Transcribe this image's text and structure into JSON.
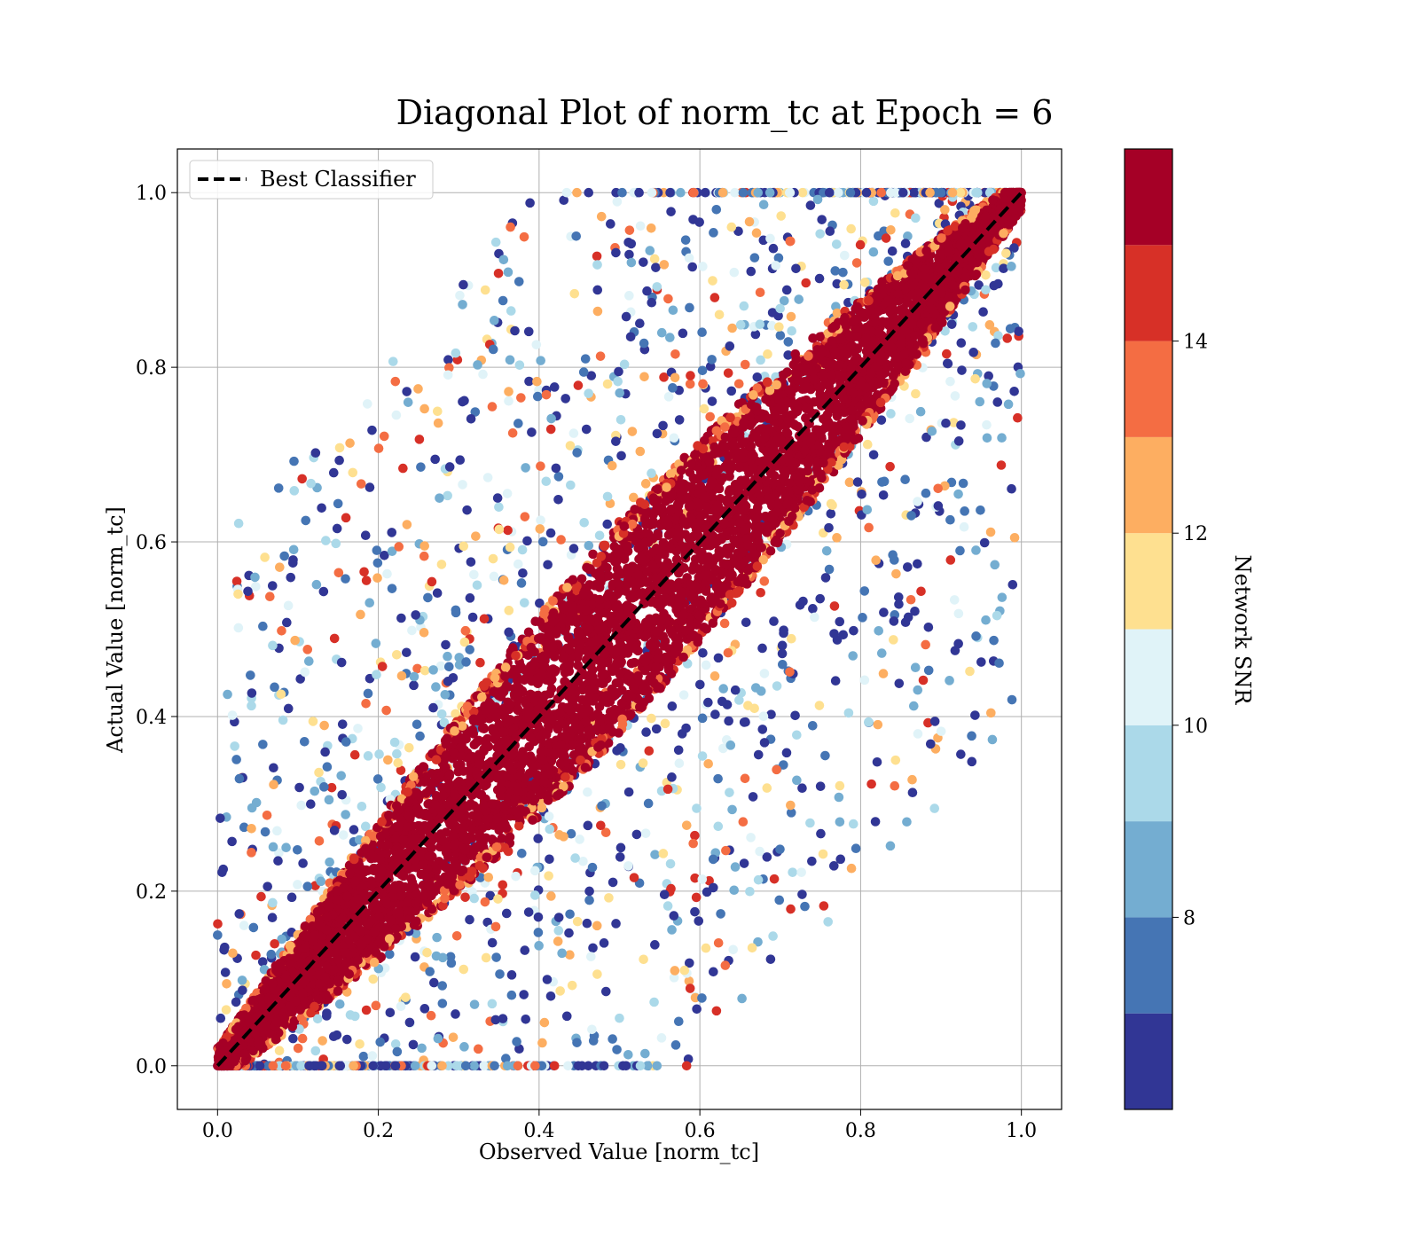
{
  "chart_data": {
    "type": "scatter",
    "title": "Diagonal Plot of norm_tc at Epoch = 6",
    "xlabel": "Observed Value [norm_tc]",
    "ylabel": "Actual Value [norm_tc]",
    "xlim": [
      -0.05,
      1.05
    ],
    "ylim": [
      -0.05,
      1.05
    ],
    "x_ticks": [
      "0.0",
      "0.2",
      "0.4",
      "0.6",
      "0.8",
      "1.0"
    ],
    "y_ticks": [
      "0.0",
      "0.2",
      "0.4",
      "0.6",
      "0.8",
      "1.0"
    ],
    "grid": true,
    "legend": {
      "entries": [
        "Best Classifier"
      ],
      "position": "top-left"
    },
    "reference_line": {
      "name": "Best Classifier",
      "x": [
        0.0,
        1.0
      ],
      "y": [
        0.0,
        1.0
      ],
      "style": "dashed",
      "color": "#000000"
    },
    "colorbar": {
      "label": "Network SNR",
      "min": 6.0,
      "max": 16.0,
      "ticks": [
        "8",
        "10",
        "12",
        "14"
      ],
      "levels": [
        {
          "from": 6.0,
          "to": 7.0,
          "color": "#313695"
        },
        {
          "from": 7.0,
          "to": 8.0,
          "color": "#4575b4"
        },
        {
          "from": 8.0,
          "to": 9.0,
          "color": "#74add1"
        },
        {
          "from": 9.0,
          "to": 10.0,
          "color": "#abd9e9"
        },
        {
          "from": 10.0,
          "to": 11.0,
          "color": "#e0f3f8"
        },
        {
          "from": 11.0,
          "to": 12.0,
          "color": "#fee090"
        },
        {
          "from": 12.0,
          "to": 13.0,
          "color": "#fdae61"
        },
        {
          "from": 13.0,
          "to": 14.0,
          "color": "#f46d43"
        },
        {
          "from": 14.0,
          "to": 15.0,
          "color": "#d73027"
        },
        {
          "from": 15.0,
          "to": 16.0,
          "color": "#a50026"
        }
      ]
    },
    "points_description": {
      "dense_band_color": "#a50026",
      "band_half_width_center": 0.12,
      "band_half_width_ends": 0.02,
      "outlier_colors": [
        "#313695",
        "#4575b4",
        "#74add1",
        "#abd9e9",
        "#e0f3f8",
        "#fee090",
        "#fdae61",
        "#f46d43",
        "#d73027"
      ]
    }
  }
}
